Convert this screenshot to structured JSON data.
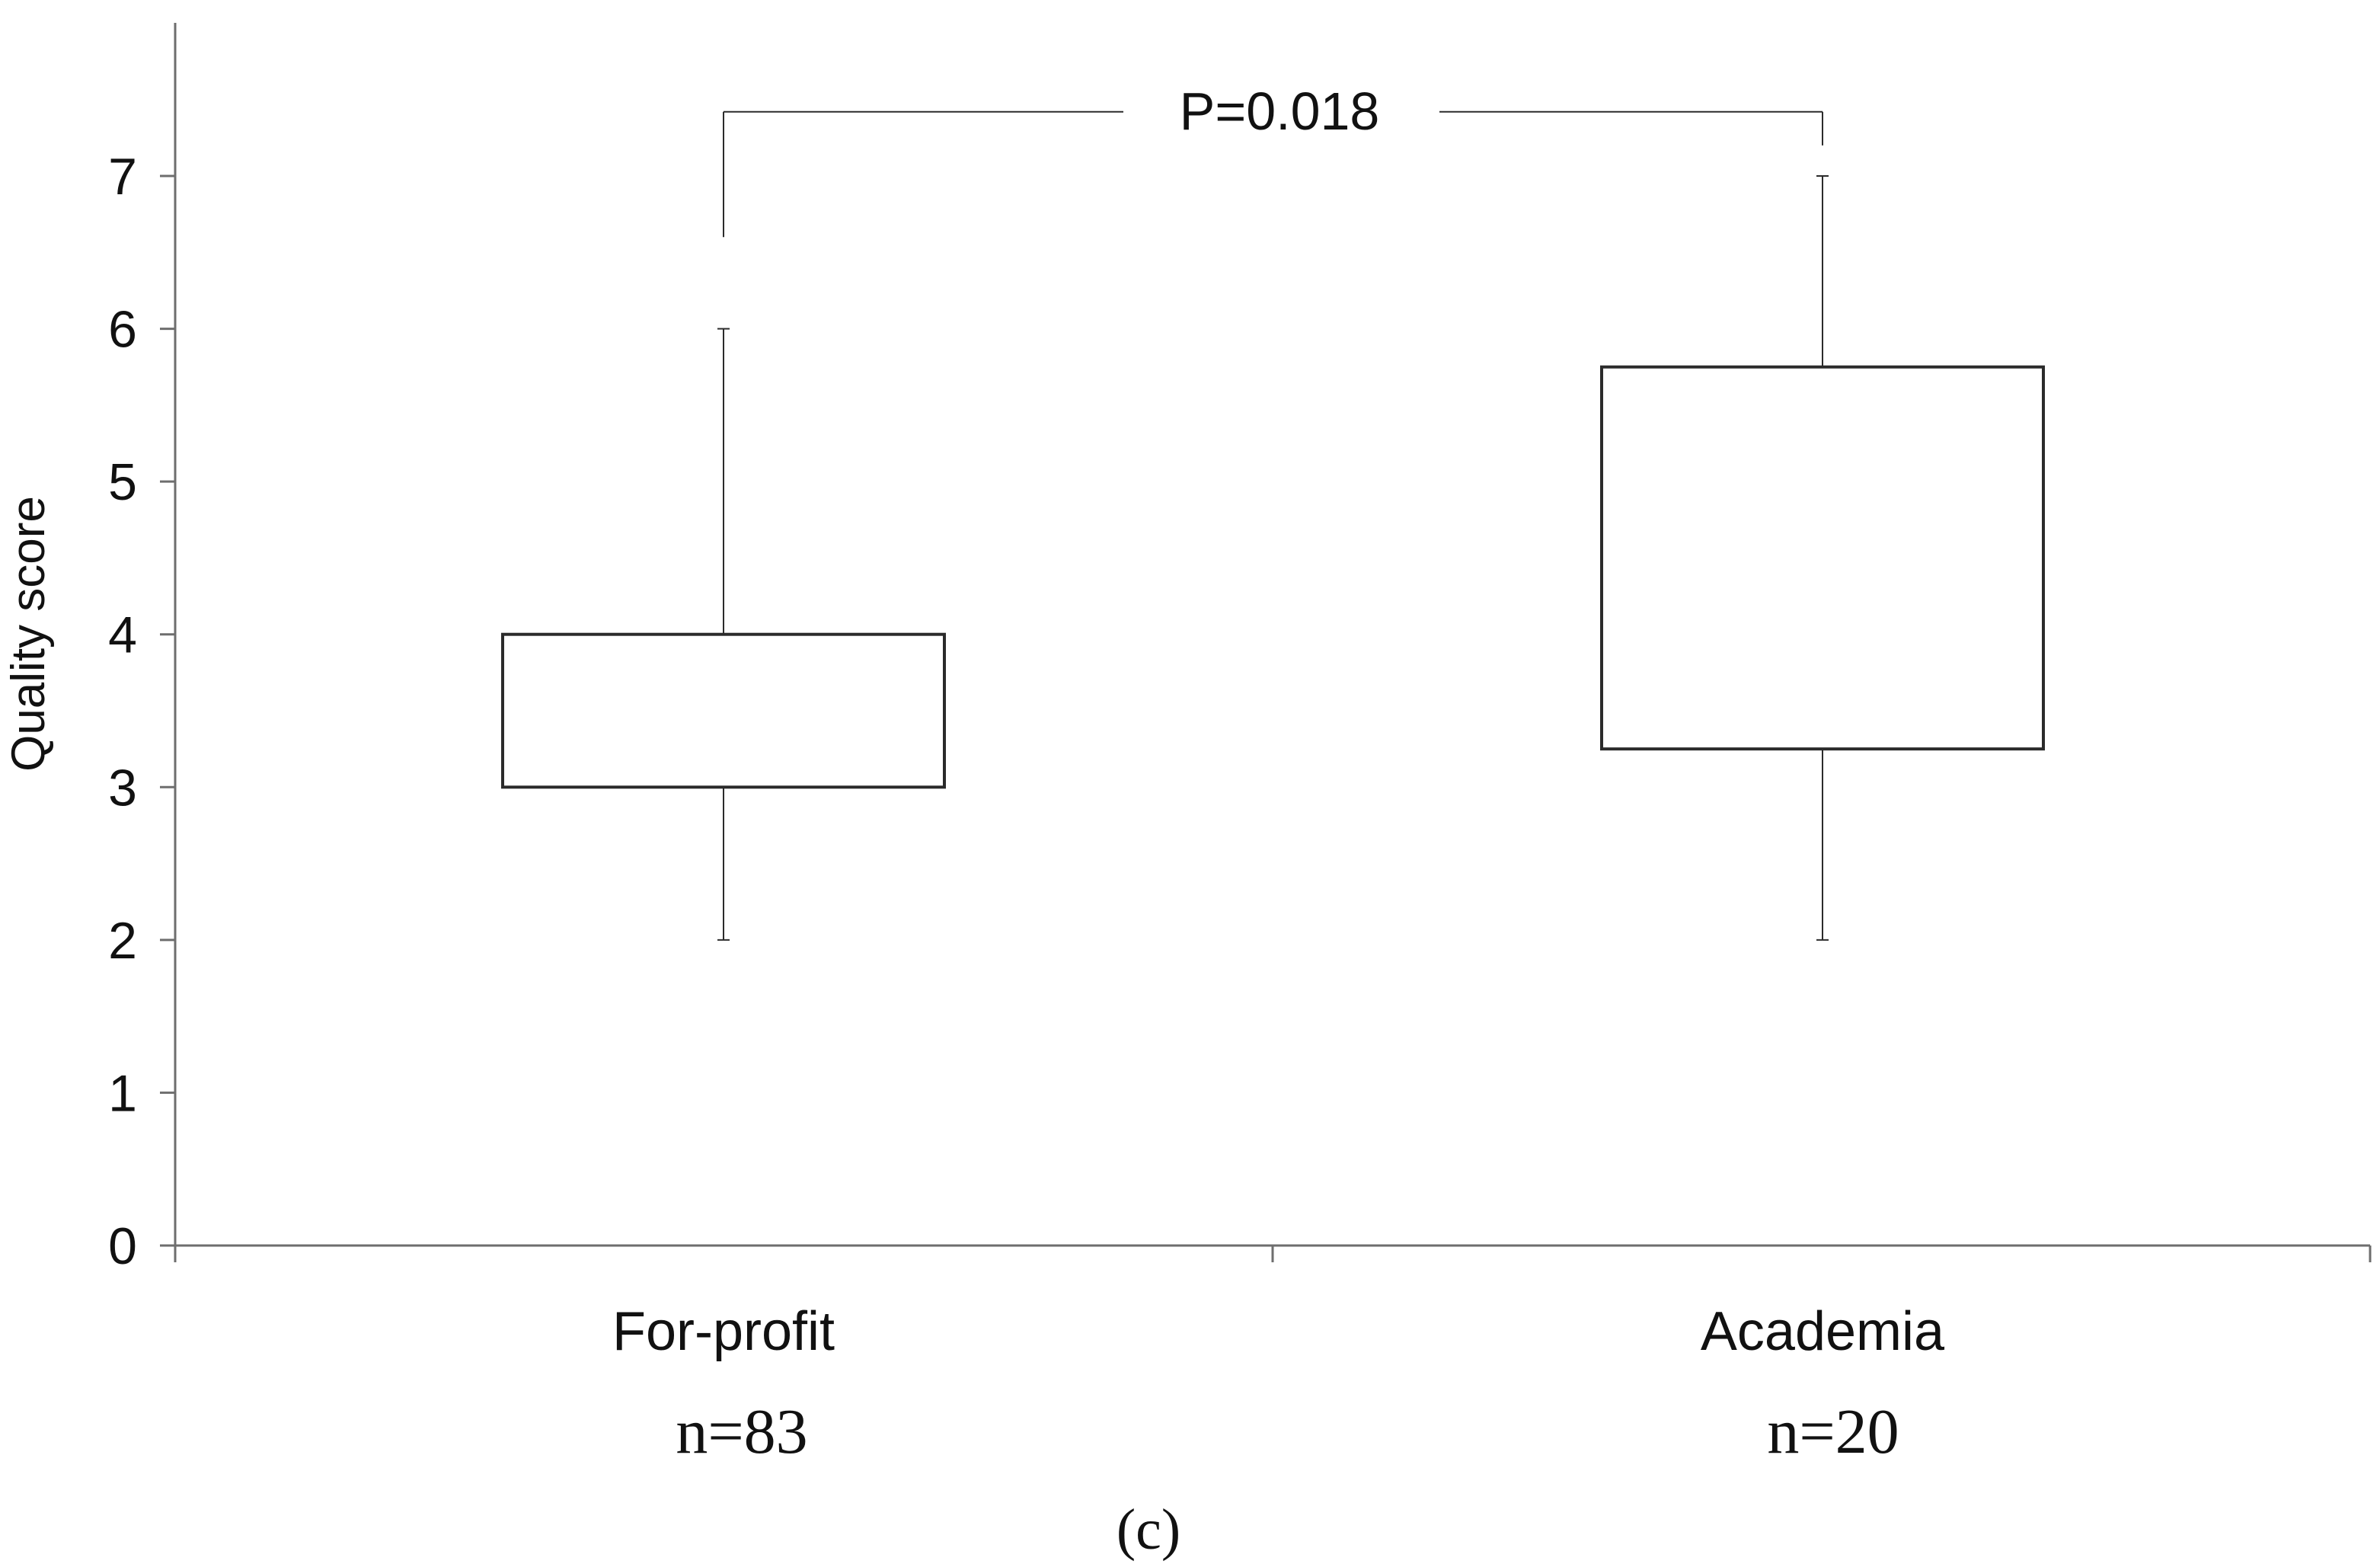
{
  "chart_data": {
    "type": "box",
    "ylabel": "Quality score",
    "ylim": [
      0,
      7.8
    ],
    "yticks": [
      0,
      1,
      2,
      3,
      4,
      5,
      6,
      7
    ],
    "grid": false,
    "categories": [
      "For-profit",
      "Academia"
    ],
    "sample_sizes": [
      "n=83",
      "n=20"
    ],
    "boxes": [
      {
        "category": "For-profit",
        "whisker_low": 2,
        "q1": 3,
        "q3": 4,
        "whisker_high": 6
      },
      {
        "category": "Academia",
        "whisker_low": 2,
        "q1": 3.25,
        "q3": 5.75,
        "whisker_high": 7
      }
    ],
    "annotation": {
      "text": "P=0.018",
      "between": [
        "For-profit",
        "Academia"
      ],
      "left_bracket_bottom": 6.6,
      "right_bracket_bottom": 7.2,
      "bracket_top": 7.42
    },
    "panel_label": "(c)",
    "colors": {
      "line": "#2b2b2b",
      "axis": "#6e6e6e",
      "box_fill": "#ffffff"
    }
  }
}
